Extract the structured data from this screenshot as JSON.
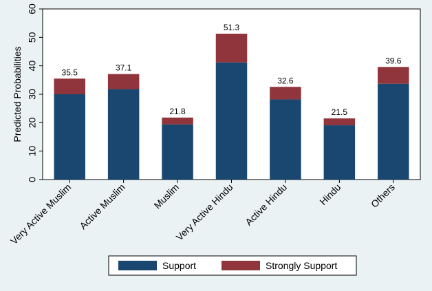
{
  "chart_data": {
    "type": "bar",
    "stacked": true,
    "categories": [
      "Very Active Muslim",
      "Active Muslim",
      "Muslim",
      "Very Active Hindu",
      "Active Hindu",
      "Hindu",
      "Others"
    ],
    "series": [
      {
        "name": "Support",
        "color": "#1a476f",
        "values": [
          30.0,
          31.8,
          19.4,
          41.2,
          28.2,
          19.1,
          33.7
        ]
      },
      {
        "name": "Strongly Support",
        "color": "#90353b",
        "values": [
          5.5,
          5.3,
          2.4,
          10.1,
          4.4,
          2.4,
          5.9
        ]
      }
    ],
    "totals_labels": [
      "35.5",
      "37.1",
      "21.8",
      "51.3",
      "32.6",
      "21.5",
      "39.6"
    ],
    "title": "",
    "xlabel": "",
    "ylabel": "Predicted Probabilities",
    "ylim": [
      0,
      60
    ],
    "yticks": [
      "0",
      "10",
      "20",
      "30",
      "40",
      "50",
      "60"
    ],
    "grid": false,
    "legend_position": "bottom",
    "colors": {
      "background": "#eaf2f3",
      "plot_background": "#ffffff"
    }
  }
}
